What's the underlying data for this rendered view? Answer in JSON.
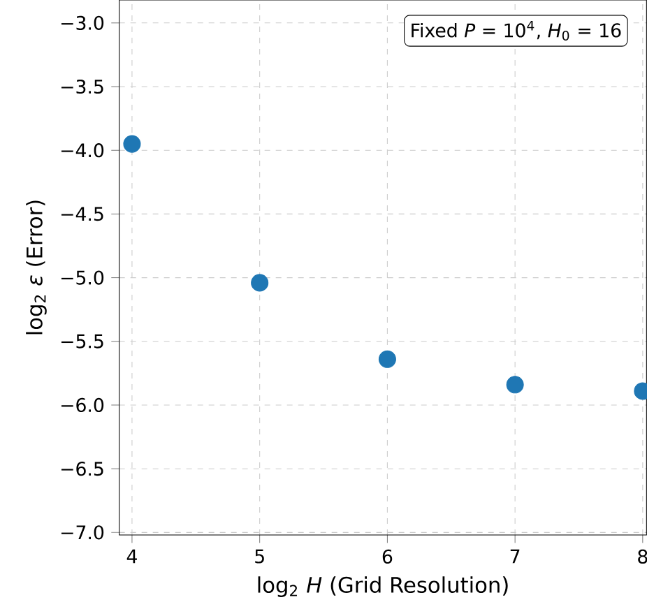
{
  "chart_data": {
    "type": "scatter",
    "xlabel": "log$_{2}$ *H* (Grid Resolution)",
    "ylabel": "log$_{2}$ *ε* (Error)",
    "annotations": [
      "Fixed *P* = 10$^{4}$, *H*$_{0}$ = 16"
    ],
    "x": [
      4,
      5,
      6,
      7,
      8
    ],
    "values": [
      -3.95,
      -5.04,
      -5.64,
      -5.84,
      -5.89
    ],
    "color": "#1f77b4",
    "xlim": [
      3.9,
      8.03
    ],
    "ylim": [
      -7.02,
      -2.82
    ],
    "xticks": [
      4,
      5,
      6,
      7,
      8
    ],
    "yticks": [
      {
        "value": -7.0,
        "label": "−7.0"
      },
      {
        "value": -6.5,
        "label": "−6.5"
      },
      {
        "value": -6.0,
        "label": "−6.0"
      },
      {
        "value": -5.5,
        "label": "−5.5"
      },
      {
        "value": -5.0,
        "label": "−5.0"
      },
      {
        "value": -4.5,
        "label": "−4.5"
      },
      {
        "value": -4.0,
        "label": "−4.0"
      },
      {
        "value": -3.5,
        "label": "−3.5"
      },
      {
        "value": -3.0,
        "label": "−3.0"
      }
    ],
    "grid": true,
    "marker": "circle"
  }
}
